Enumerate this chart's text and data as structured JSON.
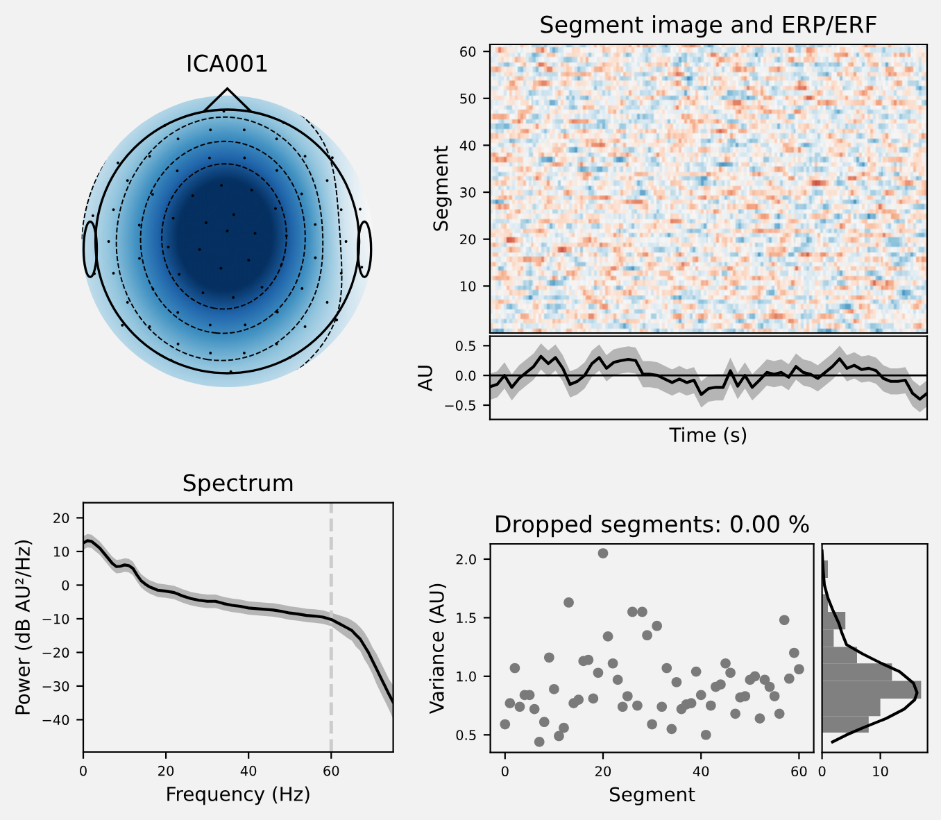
{
  "chart_data": [
    {
      "type": "other",
      "title": "ICA001"
    },
    {
      "type": "heatmap",
      "title": "Segment image and ERP/ERF",
      "ylabel": "Segment",
      "categories": [
        null,
        null,
        null,
        null,
        null,
        null,
        null,
        null,
        null,
        null,
        null,
        null,
        null,
        null,
        null,
        null,
        null,
        null,
        null,
        null,
        null,
        null,
        null,
        null,
        null,
        null,
        null,
        null,
        null,
        null,
        null,
        null,
        null,
        null,
        null,
        null,
        null,
        null,
        null,
        null
      ],
      "ylim": [
        0,
        61.5
      ],
      "yticks": [
        10,
        20,
        30,
        40,
        50,
        60
      ],
      "tick_labels": "y"
    },
    {
      "type": "line",
      "xlabel": "Time (s)",
      "ylabel": "AU",
      "categories": [
        null,
        null,
        null,
        null,
        null,
        null,
        null,
        null,
        null,
        null,
        null,
        null,
        null,
        null,
        null,
        null,
        null,
        null,
        null,
        null,
        null,
        null,
        null,
        null,
        null,
        null,
        null,
        null,
        null,
        null,
        null,
        null,
        null,
        null,
        null,
        null,
        null,
        null,
        null,
        null,
        null,
        null,
        null,
        null,
        null,
        null,
        null,
        null,
        null,
        null,
        null,
        null,
        null,
        null,
        null,
        null,
        null,
        null,
        null,
        null,
        null
      ],
      "series": [
        {
          "color": "#000000",
          "values": [
            -0.19,
            -0.15,
            0.0,
            -0.2,
            -0.05,
            0.05,
            0.15,
            0.32,
            0.2,
            0.3,
            0.12,
            -0.15,
            -0.1,
            0.0,
            0.2,
            0.3,
            0.12,
            0.22,
            0.25,
            0.27,
            0.25,
            0.02,
            0.02,
            0.0,
            -0.06,
            -0.12,
            -0.06,
            -0.12,
            -0.08,
            -0.32,
            -0.22,
            -0.2,
            -0.2,
            0.08,
            -0.18,
            0.0,
            -0.2,
            -0.08,
            0.05,
            0.02,
            0.05,
            -0.03,
            0.15,
            0.05,
            0.02,
            -0.05,
            0.05,
            0.15,
            0.28,
            0.12,
            0.17,
            0.1,
            0.12,
            0.08,
            -0.05,
            -0.1,
            -0.1,
            -0.08,
            -0.3,
            -0.4,
            -0.3
          ],
          "upper": [
            0.03,
            0.07,
            0.22,
            0.02,
            0.17,
            0.27,
            0.37,
            0.54,
            0.42,
            0.52,
            0.34,
            0.07,
            0.12,
            0.22,
            0.42,
            0.52,
            0.34,
            0.44,
            0.47,
            0.49,
            0.47,
            0.24,
            0.24,
            0.22,
            0.16,
            0.1,
            0.16,
            0.1,
            0.14,
            -0.1,
            0.0,
            0.02,
            0.02,
            0.3,
            0.04,
            0.22,
            0.02,
            0.14,
            0.27,
            0.24,
            0.27,
            0.19,
            0.37,
            0.27,
            0.24,
            0.17,
            0.27,
            0.37,
            0.5,
            0.34,
            0.39,
            0.32,
            0.34,
            0.3,
            0.17,
            0.12,
            0.12,
            0.14,
            -0.08,
            -0.18,
            -0.08
          ],
          "lower": [
            -0.41,
            -0.37,
            -0.22,
            -0.42,
            -0.27,
            -0.17,
            -0.07,
            0.1,
            -0.02,
            0.08,
            -0.1,
            -0.37,
            -0.32,
            -0.22,
            -0.02,
            0.08,
            -0.1,
            0.0,
            0.03,
            0.05,
            0.03,
            -0.2,
            -0.2,
            -0.22,
            -0.28,
            -0.34,
            -0.28,
            -0.34,
            -0.3,
            -0.54,
            -0.44,
            -0.42,
            -0.42,
            -0.14,
            -0.4,
            -0.22,
            -0.42,
            -0.3,
            -0.17,
            -0.2,
            -0.17,
            -0.25,
            -0.07,
            -0.17,
            -0.2,
            -0.27,
            -0.17,
            -0.07,
            0.06,
            -0.1,
            -0.05,
            -0.12,
            -0.1,
            -0.14,
            -0.27,
            -0.32,
            -0.32,
            -0.3,
            -0.52,
            -0.62,
            -0.52
          ]
        }
      ],
      "ylim": [
        -0.74,
        0.66
      ],
      "yticks": [
        {
          "value": -0.5,
          "label": "−0.5"
        },
        {
          "value": 0,
          "label": "0.0"
        },
        0.5
      ],
      "ref_lines": [
        {
          "axis": "y",
          "value": 0,
          "color": "#000000"
        }
      ],
      "tick_labels": "y"
    },
    {
      "type": "line",
      "title": "Spectrum",
      "xlabel": "Frequency (Hz)",
      "ylabel": "Power (dB AU²/Hz)",
      "x": [
        0,
        1,
        2,
        3,
        4,
        5,
        6,
        7,
        8,
        9,
        10,
        11,
        12,
        13,
        14,
        15,
        16,
        17,
        18,
        20,
        22,
        24,
        26,
        28,
        30,
        32,
        34,
        36,
        38,
        40,
        42,
        44,
        46,
        48,
        50,
        52,
        54,
        56,
        58,
        60,
        62,
        64,
        65,
        66,
        67,
        68,
        69,
        70,
        71,
        72,
        73,
        74,
        75
      ],
      "series": [
        {
          "color": "#000000",
          "values": [
            12.5,
            13.2,
            13.0,
            12.0,
            11.0,
            9.5,
            8.0,
            6.5,
            5.5,
            5.6,
            6.0,
            5.8,
            5.0,
            3.0,
            1.3,
            0.3,
            -0.5,
            -1.0,
            -1.5,
            -1.8,
            -2.2,
            -3.2,
            -4.0,
            -4.5,
            -4.8,
            -4.8,
            -5.5,
            -6.0,
            -6.3,
            -6.8,
            -7.0,
            -7.2,
            -7.4,
            -7.8,
            -8.3,
            -8.6,
            -9.0,
            -9.2,
            -9.5,
            -10.2,
            -11.5,
            -12.8,
            -13.5,
            -14.8,
            -16.0,
            -18.0,
            -20.0,
            -22.5,
            -25.0,
            -27.5,
            -30.0,
            -32.5,
            -34.8
          ],
          "upper": [
            14.5,
            15.2,
            15.0,
            14.0,
            13.0,
            11.5,
            10.0,
            8.5,
            7.5,
            7.6,
            8.0,
            7.8,
            7.0,
            5.0,
            3.3,
            2.3,
            1.5,
            1.0,
            0.5,
            0.2,
            -0.2,
            -1.2,
            -2.0,
            -2.5,
            -2.8,
            -2.8,
            -3.5,
            -4.0,
            -4.3,
            -4.8,
            -5.0,
            -5.2,
            -5.4,
            -5.8,
            -6.3,
            -6.6,
            -7.0,
            -7.2,
            -7.5,
            -8.2,
            -9.0,
            -9.8,
            -10.5,
            -11.3,
            -12.5,
            -14.0,
            -16.0,
            -18.5,
            -20.5,
            -23.0,
            -25.5,
            -28.0,
            -29.8
          ],
          "lower": [
            10.5,
            11.2,
            11.0,
            10.0,
            9.0,
            7.5,
            6.0,
            4.5,
            3.5,
            3.6,
            4.0,
            3.8,
            3.0,
            1.0,
            -0.7,
            -1.7,
            -2.5,
            -3.0,
            -3.5,
            -3.8,
            -4.2,
            -5.2,
            -6.0,
            -6.5,
            -6.8,
            -6.8,
            -7.5,
            -8.0,
            -8.3,
            -8.8,
            -9.0,
            -9.2,
            -9.4,
            -9.8,
            -10.3,
            -10.6,
            -11.0,
            -11.2,
            -11.5,
            -12.2,
            -14.0,
            -15.8,
            -16.5,
            -18.3,
            -19.5,
            -22.0,
            -24.0,
            -26.5,
            -29.5,
            -32.0,
            -34.5,
            -37.0,
            -39.8
          ]
        }
      ],
      "xlim": [
        0,
        75
      ],
      "ylim": [
        -49.6,
        24.5
      ],
      "xticks": [
        0,
        20,
        40,
        60
      ],
      "yticks": [
        {
          "value": -40,
          "label": "−40"
        },
        {
          "value": -30,
          "label": "−30"
        },
        {
          "value": -20,
          "label": "−20"
        },
        {
          "value": -10,
          "label": "−10"
        },
        0,
        10,
        20
      ],
      "ref_lines": [
        {
          "axis": "x",
          "value": 60,
          "color": "#cccccc",
          "line_style": "dashed"
        }
      ]
    },
    {
      "type": "scatter",
      "title": "Dropped segments: 0.00 %",
      "xlabel": "Segment",
      "ylabel": "Variance (AU)",
      "color": "#7a7a7a",
      "marker": "circle",
      "x": [
        0,
        1,
        2,
        3,
        4,
        5,
        6,
        7,
        8,
        9,
        10,
        11,
        12,
        13,
        14,
        15,
        16,
        17,
        18,
        19,
        20,
        21,
        22,
        23,
        24,
        25,
        26,
        27,
        28,
        29,
        30,
        31,
        32,
        33,
        34,
        35,
        36,
        37,
        38,
        39,
        40,
        41,
        42,
        43,
        44,
        45,
        46,
        47,
        48,
        49,
        50,
        51,
        52,
        53,
        54,
        55,
        56,
        57,
        58,
        59,
        60
      ],
      "values": [
        0.59,
        0.77,
        1.07,
        0.74,
        0.84,
        0.84,
        0.72,
        0.44,
        0.61,
        1.16,
        0.89,
        0.49,
        0.56,
        1.63,
        0.77,
        0.8,
        1.13,
        1.14,
        0.81,
        1.03,
        2.05,
        1.34,
        1.11,
        0.97,
        0.74,
        0.83,
        1.55,
        0.75,
        1.55,
        1.35,
        0.59,
        1.43,
        0.74,
        1.07,
        0.55,
        0.95,
        0.72,
        0.76,
        0.77,
        1.04,
        0.84,
        0.5,
        0.75,
        0.91,
        0.93,
        1.11,
        1.03,
        0.68,
        0.82,
        0.83,
        0.97,
        1.0,
        0.64,
        0.97,
        0.91,
        0.83,
        0.68,
        1.48,
        0.98,
        1.2,
        1.06
      ],
      "xlim": [
        -3,
        63
      ],
      "ylim": [
        0.35,
        2.13
      ],
      "xticks": [
        0,
        20,
        40,
        60
      ],
      "yticks": [
        0.5,
        {
          "value": 1,
          "label": "1.0"
        },
        1.5,
        {
          "value": 2,
          "label": "2.0"
        }
      ]
    },
    {
      "type": "histogram",
      "orientation": "horizontal",
      "series": [
        {
          "type": "histogram",
          "color": "#808080",
          "bins": [
            0.52,
            0.66,
            0.81,
            0.96,
            1.11,
            1.25,
            1.4,
            1.55,
            1.7,
            1.84,
            1.99
          ],
          "values": [
            8,
            10,
            17,
            12,
            6,
            2,
            4,
            1,
            0,
            1
          ]
        },
        {
          "type": "line",
          "color": "#000000",
          "x": [
            2.07,
            1.9,
            1.78,
            1.67,
            1.57,
            1.45,
            1.37,
            1.27,
            1.19,
            1.11,
            1.04,
            0.94,
            0.86,
            0.8,
            0.72,
            0.64,
            0.56,
            0.5,
            0.44
          ],
          "values": [
            0.0,
            0.2,
            0.4,
            1.0,
            1.8,
            2.9,
            3.4,
            4.2,
            7.0,
            10.2,
            13.3,
            15.7,
            16.3,
            15.9,
            14.1,
            11.0,
            7.0,
            4.2,
            1.8
          ]
        }
      ],
      "xlim": [
        0,
        18.1
      ],
      "ylim": [
        0.35,
        2.13
      ],
      "xticks": [
        0,
        10
      ],
      "tick_labels": "x"
    }
  ]
}
